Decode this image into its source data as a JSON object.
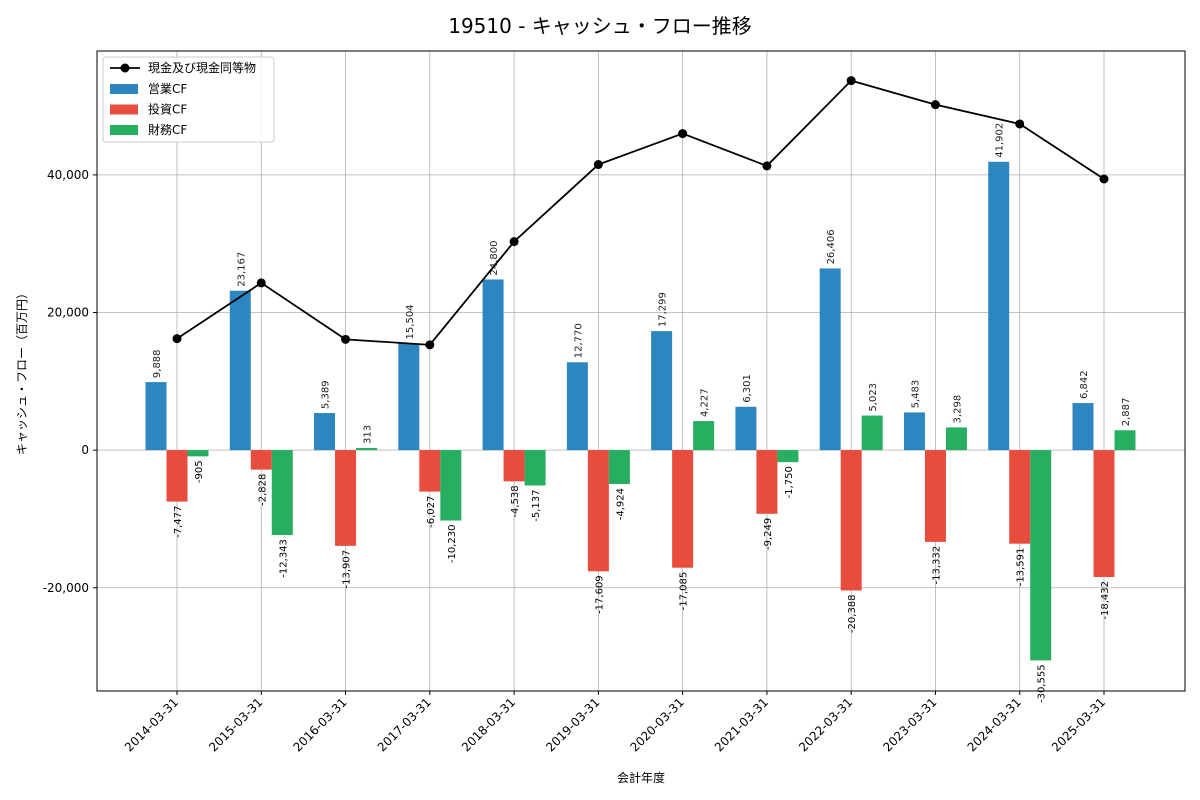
{
  "chart_data": {
    "type": "bar",
    "title": "19510 - キャッシュ・フロー推移",
    "xlabel": "会計年度",
    "ylabel": "キャッシュ・フロー（百万円）",
    "ylim": [
      -35000,
      58000
    ],
    "yticks": [
      -20000,
      0,
      20000,
      40000
    ],
    "ytick_labels": [
      "-20,000",
      "0",
      "20,000",
      "40,000"
    ],
    "grid": true,
    "legend_position": "top-left",
    "categories": [
      "2014-03-31",
      "2015-03-31",
      "2016-03-31",
      "2017-03-31",
      "2018-03-31",
      "2019-03-31",
      "2020-03-31",
      "2021-03-31",
      "2022-03-31",
      "2023-03-31",
      "2024-03-31",
      "2025-03-31"
    ],
    "series": [
      {
        "name": "営業CF",
        "type": "bar",
        "color": "#2e86c1",
        "values": [
          9888,
          23167,
          5389,
          15504,
          24800,
          12770,
          17299,
          6301,
          26406,
          5483,
          41902,
          6842
        ],
        "labels": [
          "9,888",
          "23,167",
          "5,389",
          "15,504",
          "24,800",
          "12,770",
          "17,299",
          "6,301",
          "26,406",
          "5,483",
          "41,902",
          "6,842"
        ]
      },
      {
        "name": "投資CF",
        "type": "bar",
        "color": "#e74c3c",
        "values": [
          -7477,
          -2828,
          -13907,
          -6027,
          -4538,
          -17609,
          -17085,
          -9249,
          -20388,
          -13332,
          -13591,
          -18432
        ],
        "labels": [
          "-7,477",
          "-2,828",
          "-13,907",
          "-6,027",
          "-4,538",
          "-17,609",
          "-17,085",
          "-9,249",
          "-20,388",
          "-13,332",
          "-13,591",
          "-18,432"
        ]
      },
      {
        "name": "財務CF",
        "type": "bar",
        "color": "#27ae60",
        "values": [
          -905,
          -12343,
          313,
          -10230,
          -5137,
          -4924,
          4227,
          -1750,
          5023,
          3298,
          -30555,
          2887
        ],
        "labels": [
          "-905",
          "-12,343",
          "313",
          "-10,230",
          "-5,137",
          "-4,924",
          "4,227",
          "-1,750",
          "5,023",
          "3,298",
          "-30,555",
          "2,887"
        ]
      },
      {
        "name": "現金及び現金同等物",
        "type": "line",
        "color": "#000000",
        "values": [
          16200,
          24300,
          16100,
          15300,
          30300,
          41500,
          46000,
          41300,
          53700,
          50200,
          47400,
          39400
        ]
      }
    ]
  }
}
